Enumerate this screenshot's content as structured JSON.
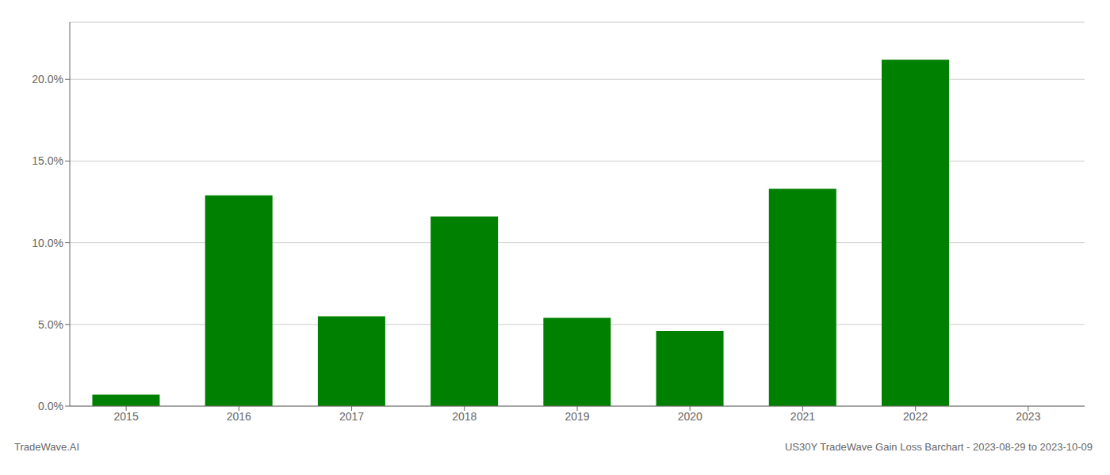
{
  "chart_data": {
    "type": "bar",
    "title": "US30Y TradeWave Gain Loss Barchart - 2023-08-29 to 2023-10-09",
    "annotations": [
      "TradeWave.AI"
    ],
    "categories": [
      "2015",
      "2016",
      "2017",
      "2018",
      "2019",
      "2020",
      "2021",
      "2022",
      "2023"
    ],
    "values": [
      0.007,
      0.129,
      0.055,
      0.116,
      0.054,
      0.046,
      0.133,
      0.212,
      0.0
    ],
    "color": "#008000",
    "ylim": [
      0,
      0.235
    ],
    "yticks": [
      {
        "value": 0.0,
        "label": "0.0%"
      },
      {
        "value": 0.05,
        "label": "5.0%"
      },
      {
        "value": 0.1,
        "label": "10.0%"
      },
      {
        "value": 0.15,
        "label": "15.0%"
      },
      {
        "value": 0.2,
        "label": "20.0%"
      }
    ],
    "grid": true
  }
}
